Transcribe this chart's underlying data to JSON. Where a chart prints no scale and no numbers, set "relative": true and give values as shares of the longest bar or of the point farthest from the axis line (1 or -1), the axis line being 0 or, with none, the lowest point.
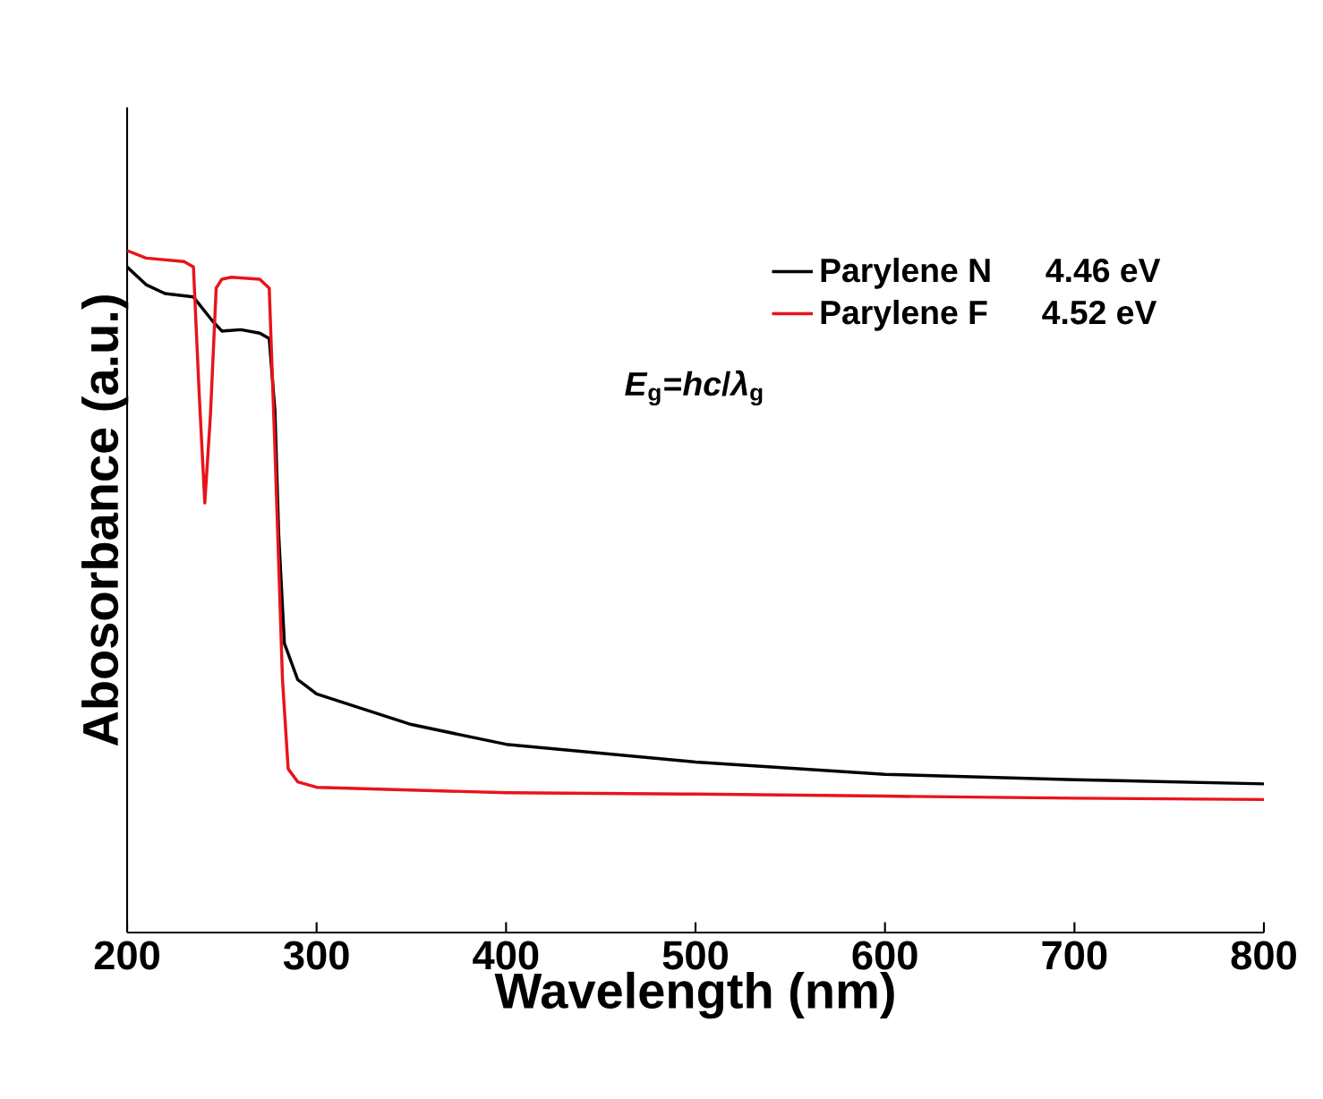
{
  "chart_data": {
    "type": "line",
    "relative": true,
    "xlabel": "Wavelength (nm)",
    "ylabel": "Abosorbance (a.u.)",
    "xlim": [
      200,
      800
    ],
    "xticks": [
      200,
      300,
      400,
      500,
      600,
      700,
      800
    ],
    "legend": "top right",
    "grid": false,
    "marker": "none",
    "line_style": "solid",
    "annotations": [
      "4.46 eV",
      "4.52 eV",
      "*E*$_{g}$=*hc*/*λ*$_{g}$"
    ],
    "series": [
      {
        "name": "Parylene N",
        "color": "#000000",
        "x": [
          200,
          210,
          220,
          235,
          245,
          250,
          260,
          270,
          275,
          278,
          280,
          283,
          290,
          300,
          350,
          400,
          500,
          600,
          700,
          800
        ],
        "values": [
          0.976,
          0.95,
          0.937,
          0.932,
          0.897,
          0.882,
          0.884,
          0.879,
          0.871,
          0.766,
          0.584,
          0.424,
          0.371,
          0.35,
          0.305,
          0.276,
          0.25,
          0.232,
          0.224,
          0.218
        ]
      },
      {
        "name": "Parylene F",
        "color": "#e8141a",
        "x": [
          200,
          210,
          230,
          235,
          238,
          241,
          244,
          247,
          250,
          255,
          270,
          275,
          278,
          282,
          285,
          290,
          300,
          400,
          500,
          600,
          700,
          800
        ],
        "values": [
          1.0,
          0.989,
          0.984,
          0.976,
          0.792,
          0.63,
          0.76,
          0.945,
          0.958,
          0.961,
          0.958,
          0.945,
          0.71,
          0.371,
          0.24,
          0.221,
          0.213,
          0.205,
          0.203,
          0.2,
          0.197,
          0.195
        ]
      }
    ]
  }
}
